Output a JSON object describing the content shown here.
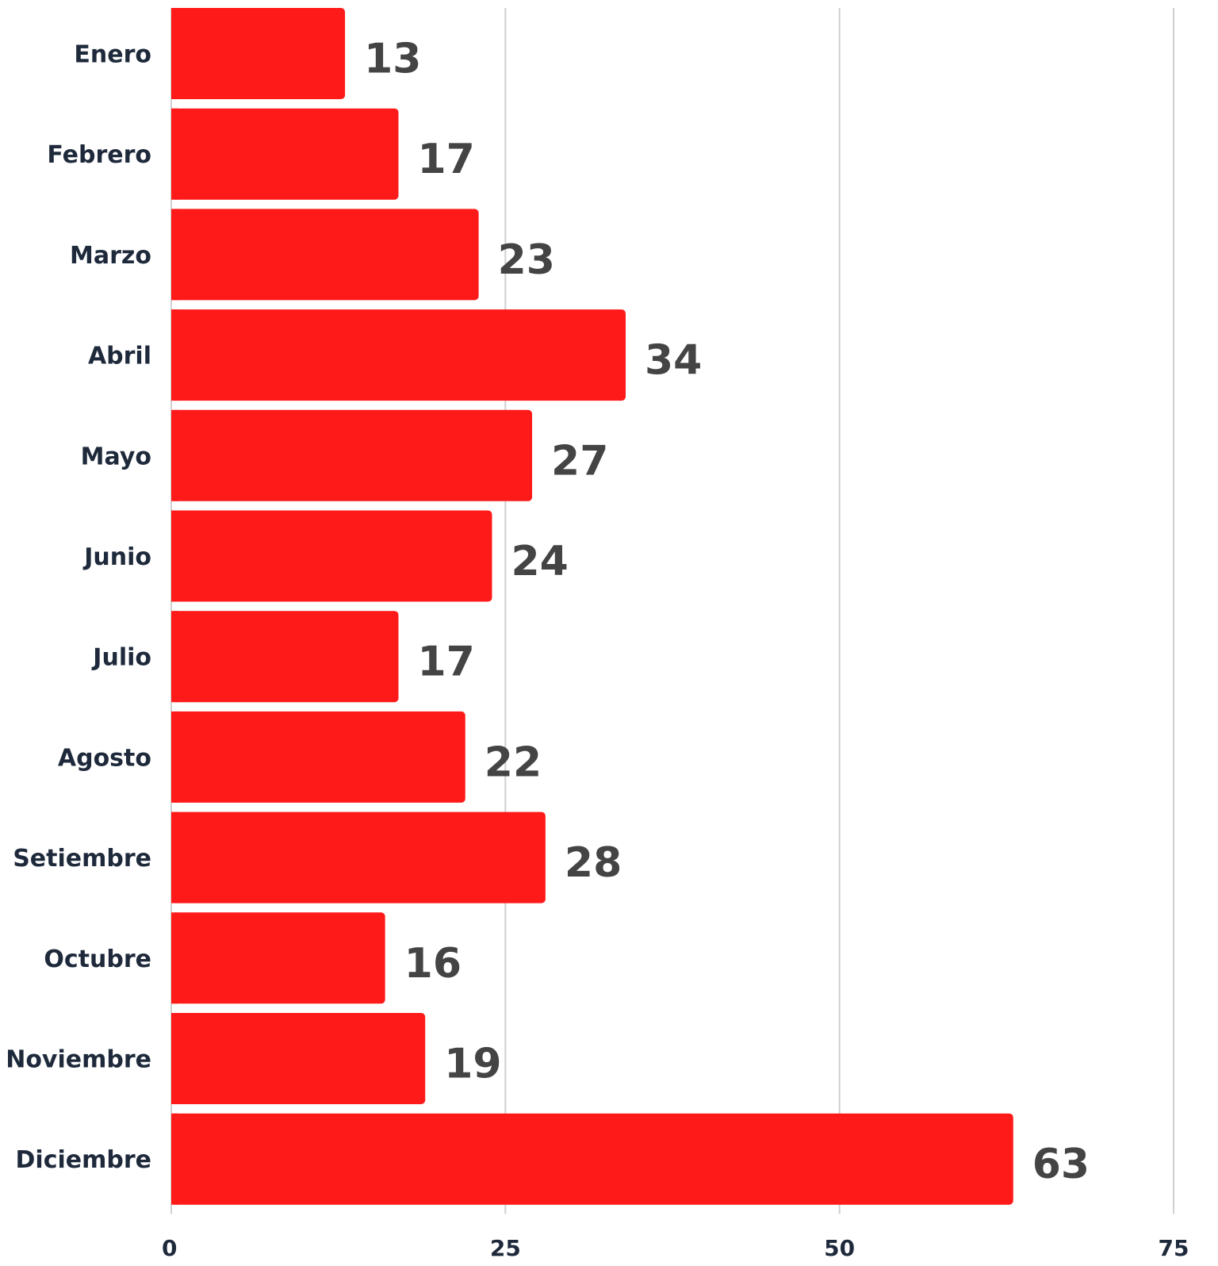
{
  "chart_data": {
    "type": "bar",
    "orientation": "horizontal",
    "title": "",
    "xlabel": "",
    "ylabel": "",
    "categories": [
      "Enero",
      "Febrero",
      "Marzo",
      "Abril",
      "Mayo",
      "Junio",
      "Julio",
      "Agosto",
      "Setiembre",
      "Octubre",
      "Noviembre",
      "Diciembre"
    ],
    "values": [
      13,
      17,
      23,
      34,
      27,
      24,
      17,
      22,
      28,
      16,
      19,
      63
    ],
    "xlim": [
      0,
      75
    ],
    "xticks": [
      0,
      25,
      50,
      75
    ],
    "grid": true,
    "legend": "none",
    "bar_color": "#ff1a1a",
    "value_label_color": "#444444",
    "category_label_color": "#1e2a3b"
  }
}
